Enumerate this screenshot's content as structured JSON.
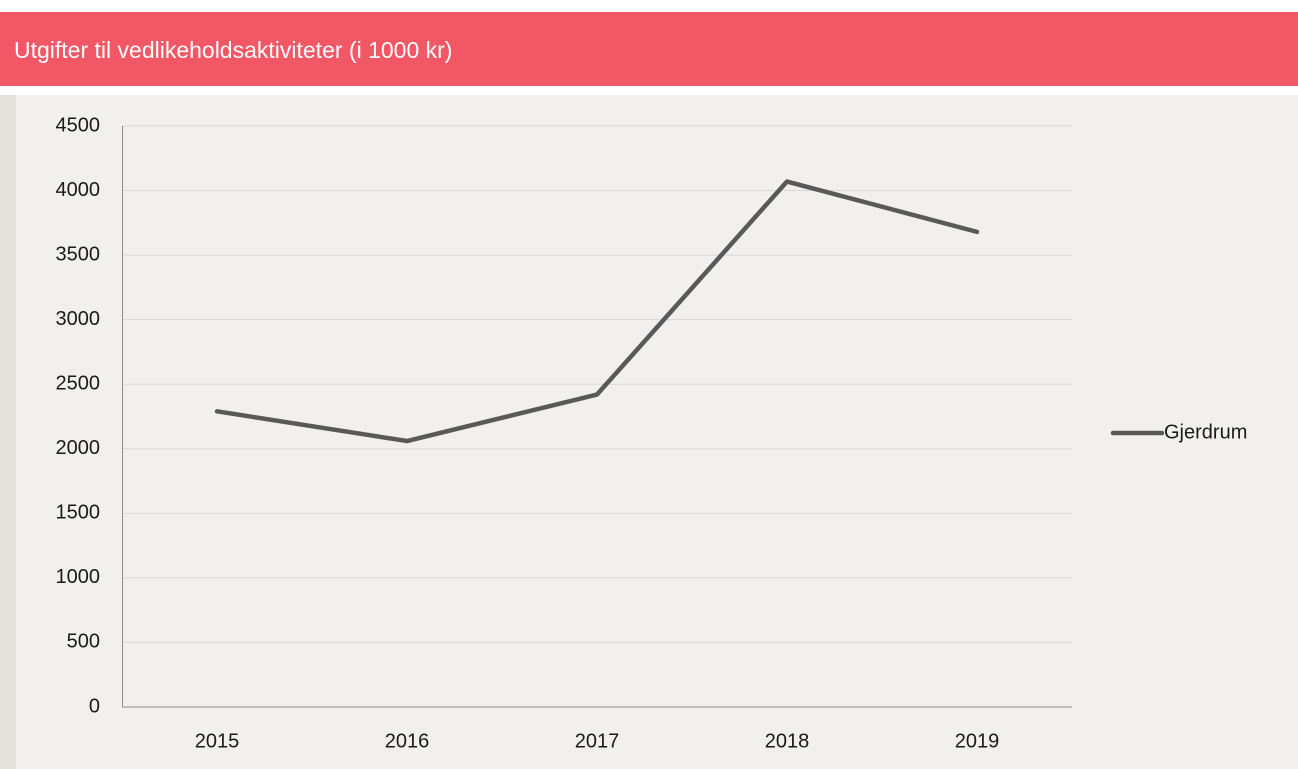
{
  "chart_data": {
    "type": "line",
    "title": "Utgifter til vedlikeholdsaktiviteter (i 1000 kr)",
    "categories": [
      "2015",
      "2016",
      "2017",
      "2018",
      "2019"
    ],
    "series": [
      {
        "name": "Gjerdrum",
        "color": "#595959",
        "values": [
          2290,
          2060,
          2420,
          4070,
          3680
        ]
      }
    ],
    "ylim": [
      0,
      4500
    ],
    "yticks": [
      0,
      500,
      1000,
      1500,
      2000,
      2500,
      3000,
      3500,
      4000,
      4500
    ],
    "grid": true,
    "legend": "right"
  }
}
